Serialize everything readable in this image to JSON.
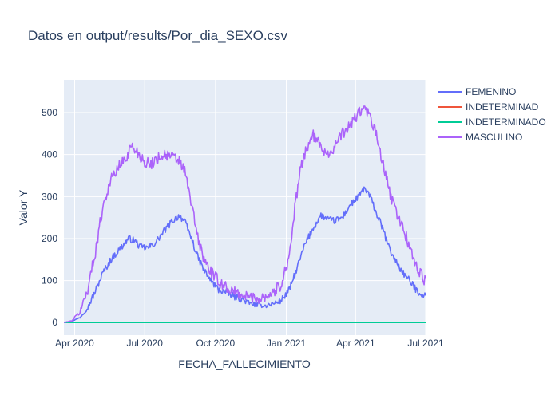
{
  "chart_data": {
    "type": "line",
    "title": "Datos en output/results/Por_dia_SEXO.csv",
    "xlabel": "FECHA_FALLECIMIENTO",
    "ylabel": "Valor Y",
    "x_range": [
      "2020-03-18",
      "2021-07-01"
    ],
    "ylim": [
      -30,
      578
    ],
    "x_ticks": [
      {
        "date": "2020-04-01",
        "label": "Apr 2020"
      },
      {
        "date": "2020-07-01",
        "label": "Jul 2020"
      },
      {
        "date": "2020-10-01",
        "label": "Oct 2020"
      },
      {
        "date": "2021-01-01",
        "label": "Jan 2021"
      },
      {
        "date": "2021-04-01",
        "label": "Apr 2021"
      },
      {
        "date": "2021-07-01",
        "label": "Jul 2021"
      }
    ],
    "y_ticks": [
      0,
      100,
      200,
      300,
      400,
      500
    ],
    "grid": true,
    "legend_position": "right",
    "series": [
      {
        "name": "FEMENINO",
        "color": "#636efa",
        "noise": 8,
        "points": [
          [
            "2020-03-18",
            0
          ],
          [
            "2020-03-28",
            3
          ],
          [
            "2020-04-08",
            12
          ],
          [
            "2020-04-18",
            35
          ],
          [
            "2020-04-28",
            75
          ],
          [
            "2020-05-08",
            120
          ],
          [
            "2020-05-20",
            155
          ],
          [
            "2020-06-01",
            180
          ],
          [
            "2020-06-10",
            200
          ],
          [
            "2020-06-18",
            195
          ],
          [
            "2020-06-25",
            180
          ],
          [
            "2020-07-05",
            178
          ],
          [
            "2020-07-15",
            190
          ],
          [
            "2020-07-25",
            215
          ],
          [
            "2020-08-05",
            240
          ],
          [
            "2020-08-15",
            255
          ],
          [
            "2020-08-22",
            240
          ],
          [
            "2020-08-30",
            205
          ],
          [
            "2020-09-07",
            160
          ],
          [
            "2020-09-16",
            125
          ],
          [
            "2020-09-25",
            100
          ],
          [
            "2020-10-05",
            78
          ],
          [
            "2020-10-15",
            72
          ],
          [
            "2020-10-25",
            62
          ],
          [
            "2020-11-05",
            55
          ],
          [
            "2020-11-15",
            45
          ],
          [
            "2020-11-25",
            42
          ],
          [
            "2020-12-05",
            40
          ],
          [
            "2020-12-15",
            45
          ],
          [
            "2020-12-25",
            52
          ],
          [
            "2021-01-05",
            78
          ],
          [
            "2021-01-15",
            130
          ],
          [
            "2021-01-25",
            185
          ],
          [
            "2021-02-05",
            225
          ],
          [
            "2021-02-15",
            255
          ],
          [
            "2021-02-25",
            245
          ],
          [
            "2021-03-05",
            242
          ],
          [
            "2021-03-15",
            250
          ],
          [
            "2021-03-25",
            280
          ],
          [
            "2021-04-05",
            300
          ],
          [
            "2021-04-12",
            320
          ],
          [
            "2021-04-20",
            300
          ],
          [
            "2021-04-28",
            260
          ],
          [
            "2021-05-06",
            225
          ],
          [
            "2021-05-14",
            180
          ],
          [
            "2021-05-22",
            150
          ],
          [
            "2021-06-01",
            120
          ],
          [
            "2021-06-10",
            100
          ],
          [
            "2021-06-20",
            75
          ],
          [
            "2021-07-01",
            62
          ]
        ]
      },
      {
        "name": "INDETERMINAD",
        "color": "#ef553b",
        "noise": 0,
        "points": [
          [
            "2020-03-18",
            0
          ],
          [
            "2021-07-01",
            0
          ]
        ]
      },
      {
        "name": "INDETERMINADO",
        "color": "#00cc96",
        "noise": 0,
        "points": [
          [
            "2020-03-18",
            0
          ],
          [
            "2021-07-01",
            0
          ]
        ]
      },
      {
        "name": "MASCULINO",
        "color": "#ab63fa",
        "noise": 14,
        "points": [
          [
            "2020-03-18",
            0
          ],
          [
            "2020-03-28",
            4
          ],
          [
            "2020-04-08",
            25
          ],
          [
            "2020-04-18",
            80
          ],
          [
            "2020-04-28",
            170
          ],
          [
            "2020-05-08",
            280
          ],
          [
            "2020-05-18",
            340
          ],
          [
            "2020-05-28",
            370
          ],
          [
            "2020-06-06",
            390
          ],
          [
            "2020-06-14",
            420
          ],
          [
            "2020-06-22",
            405
          ],
          [
            "2020-06-30",
            385
          ],
          [
            "2020-07-08",
            375
          ],
          [
            "2020-07-16",
            390
          ],
          [
            "2020-07-26",
            400
          ],
          [
            "2020-08-05",
            395
          ],
          [
            "2020-08-15",
            385
          ],
          [
            "2020-08-22",
            360
          ],
          [
            "2020-08-30",
            290
          ],
          [
            "2020-09-07",
            210
          ],
          [
            "2020-09-15",
            155
          ],
          [
            "2020-09-25",
            120
          ],
          [
            "2020-10-05",
            98
          ],
          [
            "2020-10-15",
            85
          ],
          [
            "2020-10-25",
            72
          ],
          [
            "2020-11-05",
            65
          ],
          [
            "2020-11-15",
            60
          ],
          [
            "2020-11-25",
            58
          ],
          [
            "2020-12-05",
            62
          ],
          [
            "2020-12-15",
            72
          ],
          [
            "2020-12-25",
            90
          ],
          [
            "2021-01-05",
            160
          ],
          [
            "2021-01-12",
            270
          ],
          [
            "2021-01-20",
            370
          ],
          [
            "2021-01-28",
            420
          ],
          [
            "2021-02-05",
            445
          ],
          [
            "2021-02-15",
            420
          ],
          [
            "2021-02-25",
            400
          ],
          [
            "2021-03-05",
            420
          ],
          [
            "2021-03-15",
            450
          ],
          [
            "2021-03-25",
            470
          ],
          [
            "2021-04-05",
            500
          ],
          [
            "2021-04-12",
            510
          ],
          [
            "2021-04-20",
            490
          ],
          [
            "2021-04-28",
            445
          ],
          [
            "2021-05-06",
            380
          ],
          [
            "2021-05-14",
            320
          ],
          [
            "2021-05-22",
            270
          ],
          [
            "2021-06-01",
            230
          ],
          [
            "2021-06-10",
            180
          ],
          [
            "2021-06-20",
            130
          ],
          [
            "2021-07-01",
            95
          ]
        ]
      }
    ]
  }
}
